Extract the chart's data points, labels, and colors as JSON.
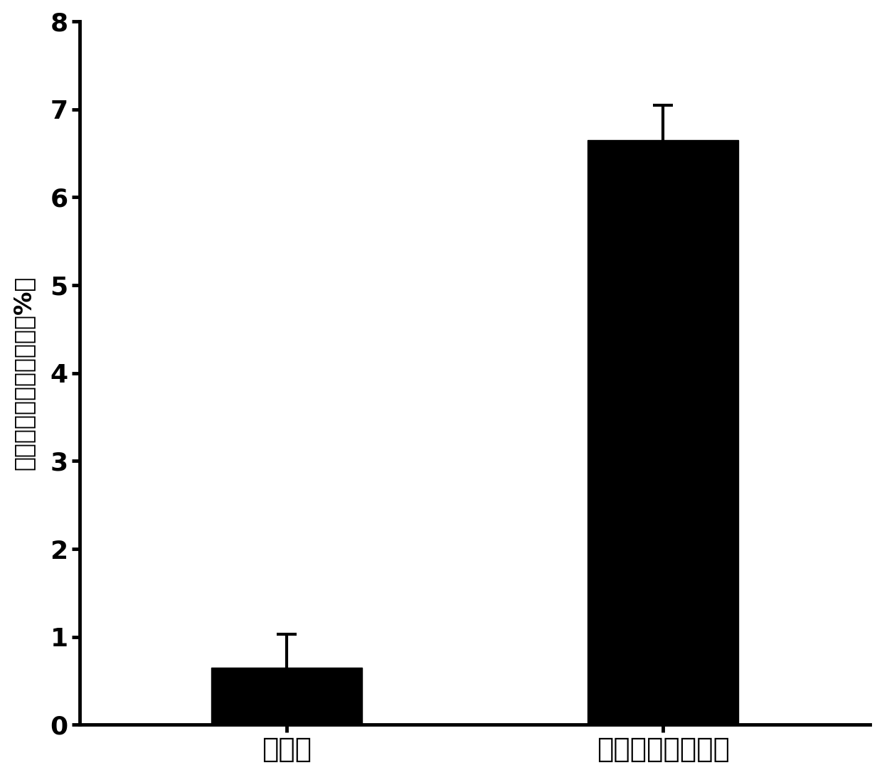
{
  "categories": [
    "对照组",
    "嗜高温菌剂处理组"
  ],
  "values": [
    0.65,
    6.65
  ],
  "errors": [
    0.38,
    0.4
  ],
  "bar_color": "#000000",
  "background_color": "#ffffff",
  "ylabel": "聚苯乙烯泡沫质量损失（%）",
  "ylim": [
    0,
    8
  ],
  "yticks": [
    0,
    1,
    2,
    3,
    4,
    5,
    6,
    7,
    8
  ],
  "tick_fontsize": 26,
  "label_fontsize": 24,
  "xtick_fontsize": 28,
  "bar_width": 0.4,
  "figsize": [
    12.4,
    10.9
  ],
  "dpi": 100,
  "spine_linewidth": 3.5,
  "error_capsize": 10,
  "error_capthick": 3,
  "error_linewidth": 3
}
